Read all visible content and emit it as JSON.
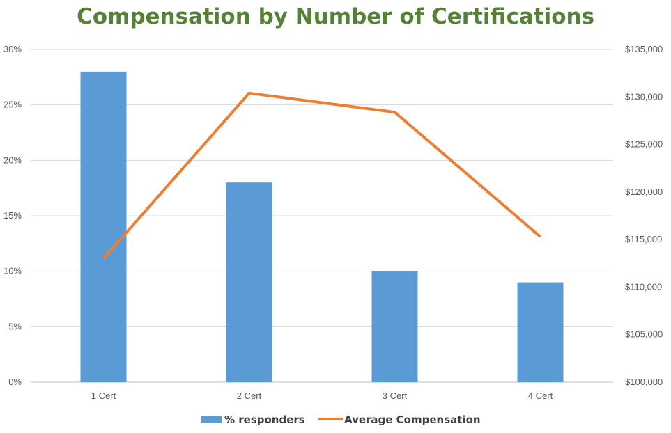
{
  "chart_data": {
    "type": "bar",
    "title": "Compensation by Number of Certifications",
    "categories": [
      "1 Cert",
      "2 Cert",
      "3 Cert",
      "4 Cert"
    ],
    "series": [
      {
        "name": "% responders",
        "type": "bar",
        "axis": "left",
        "values": [
          0.28,
          0.18,
          0.1,
          0.09
        ],
        "color": "#5B9BD5"
      },
      {
        "name": "Average Compensation",
        "type": "line",
        "axis": "right",
        "values": [
          113000,
          130400,
          128400,
          115300
        ],
        "color": "#ED7D31"
      }
    ],
    "y_left": {
      "ylim": [
        0,
        0.3
      ],
      "ticks": [
        0,
        0.05,
        0.1,
        0.15,
        0.2,
        0.25,
        0.3
      ],
      "tick_labels": [
        "0%",
        "5%",
        "10%",
        "15%",
        "20%",
        "25%",
        "30%"
      ]
    },
    "y_right": {
      "ylim": [
        100000,
        135000
      ],
      "ticks": [
        100000,
        105000,
        110000,
        115000,
        120000,
        125000,
        130000,
        135000
      ],
      "tick_labels": [
        "$100,000",
        "$105,000",
        "$110,000",
        "$115,000",
        "$120,000",
        "$125,000",
        "$130,000",
        "$135,000"
      ]
    },
    "grid": true,
    "legend": "bottom",
    "title_color": "#548235"
  }
}
